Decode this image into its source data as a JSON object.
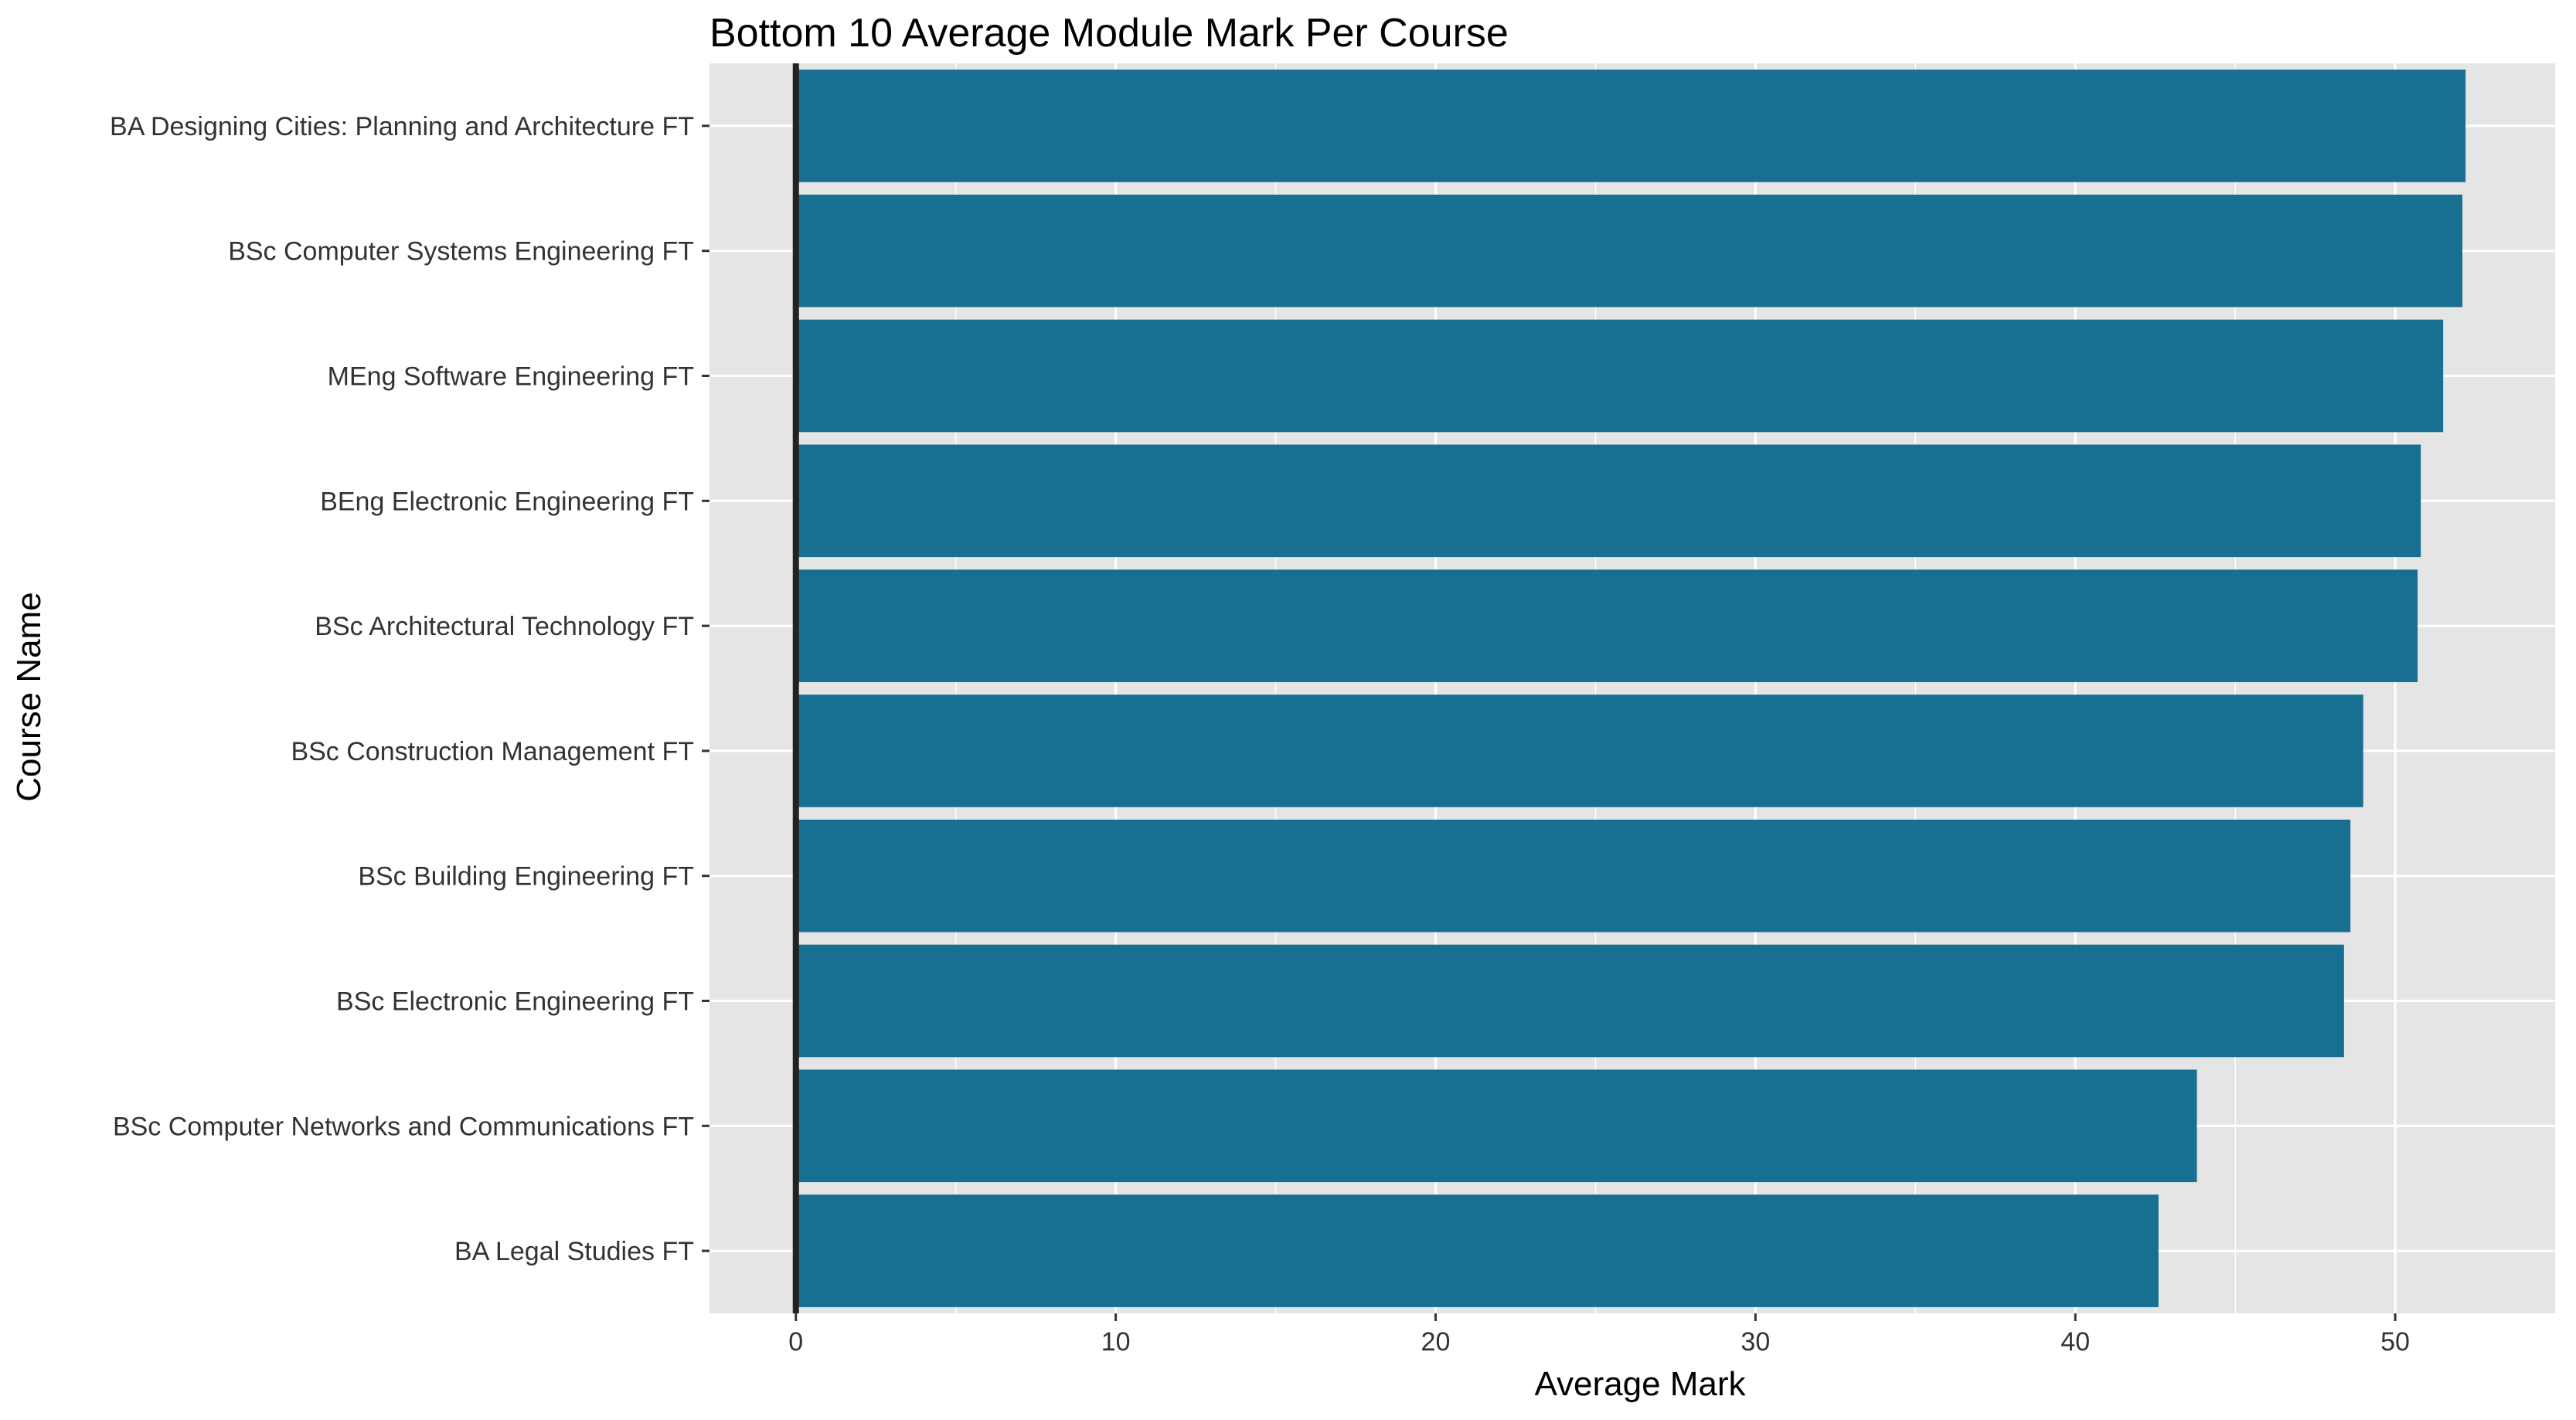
{
  "chart_data": {
    "type": "bar",
    "orientation": "horizontal",
    "title": "Bottom 10 Average Module Mark Per Course",
    "xlabel": "Average Mark",
    "ylabel": "Course Name",
    "categories": [
      "BA Designing Cities: Planning and Architecture FT",
      "BSc Computer Systems Engineering FT",
      "MEng Software Engineering FT",
      "BEng Electronic Engineering FT",
      "BSc Architectural Technology FT",
      "BSc Construction Management FT",
      "BSc Building Engineering FT",
      "BSc Electronic Engineering FT",
      "BSc Computer Networks and Communications FT",
      "BA Legal Studies FT"
    ],
    "values": [
      52.2,
      52.1,
      51.5,
      50.8,
      50.7,
      49.0,
      48.6,
      48.4,
      43.8,
      42.6
    ],
    "xlim": [
      -2.7,
      55.0
    ],
    "xticks": [
      "0",
      "10",
      "20",
      "30",
      "40",
      "50"
    ],
    "grid": true,
    "legend": "none",
    "colors": {
      "bar": "#176F91",
      "panel": "#E5E5E5",
      "grid": "#FFFFFF",
      "zero_line": "#222222",
      "text": "#333333",
      "title": "#000000"
    }
  }
}
